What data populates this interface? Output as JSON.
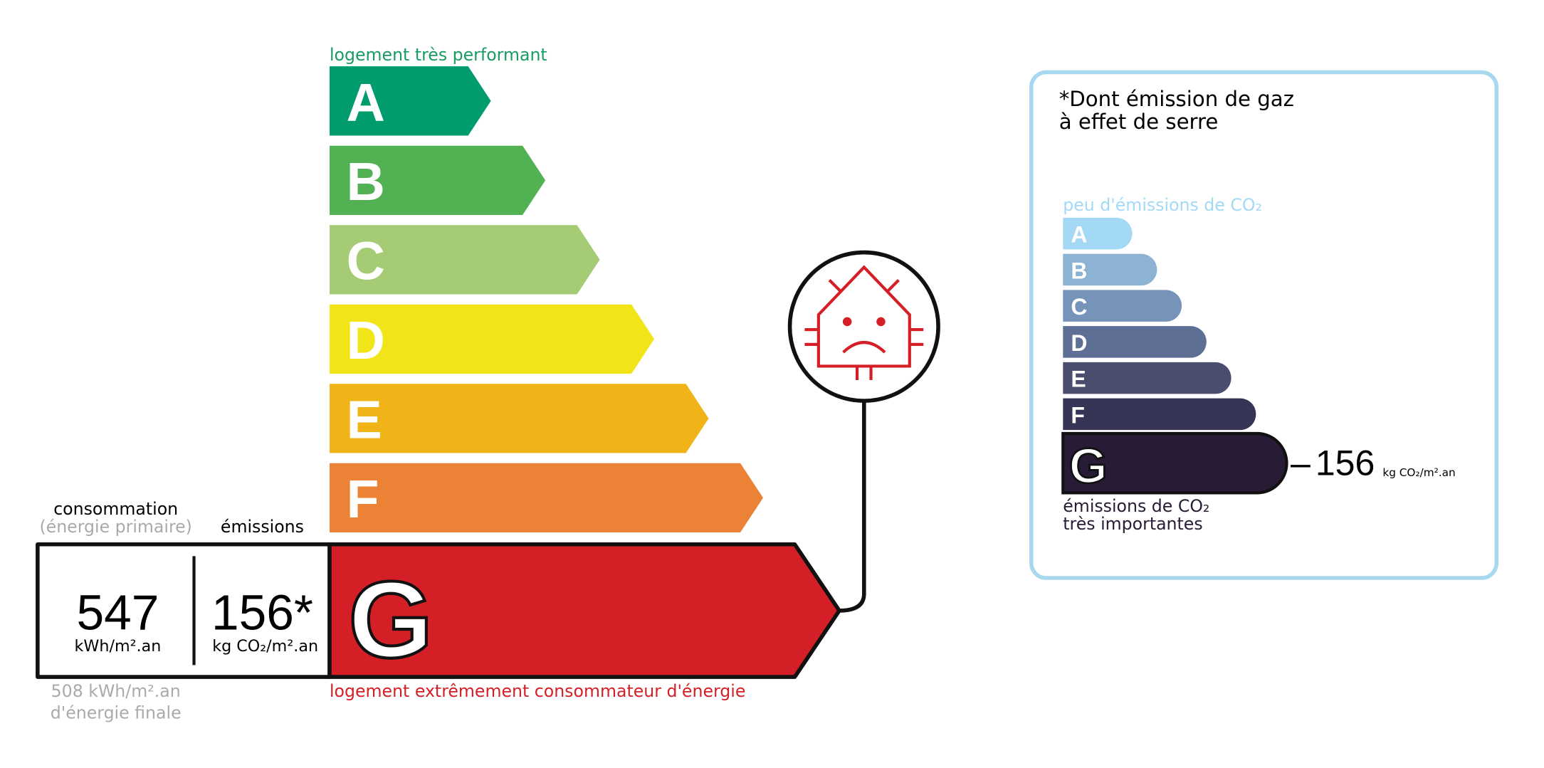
{
  "energy_label": {
    "top_note": "logement très performant",
    "bottom_note": "logement extrêmement consommateur d'énergie",
    "classes": [
      "A",
      "B",
      "C",
      "D",
      "E",
      "F",
      "G"
    ],
    "current_class": "G"
  },
  "consumption": {
    "header": "consommation",
    "subheader": "(énergie primaire)",
    "value": "547",
    "unit": "kWh/m².an",
    "final_value": "508 kWh/m².an",
    "final_note": "d'énergie finale"
  },
  "emissions": {
    "header": "émissions",
    "value": "156*",
    "unit": "kg CO₂/m².an"
  },
  "ges_panel": {
    "title_lines": [
      "*Dont émission de gaz",
      "à effet de serre"
    ],
    "top_note": "peu d'émissions de CO₂",
    "classes": [
      "A",
      "B",
      "C",
      "D",
      "E",
      "F",
      "G"
    ],
    "value": "156",
    "unit": "kg CO₂/m².an",
    "bottom_lines": [
      "émissions de CO₂",
      "très importantes"
    ]
  }
}
